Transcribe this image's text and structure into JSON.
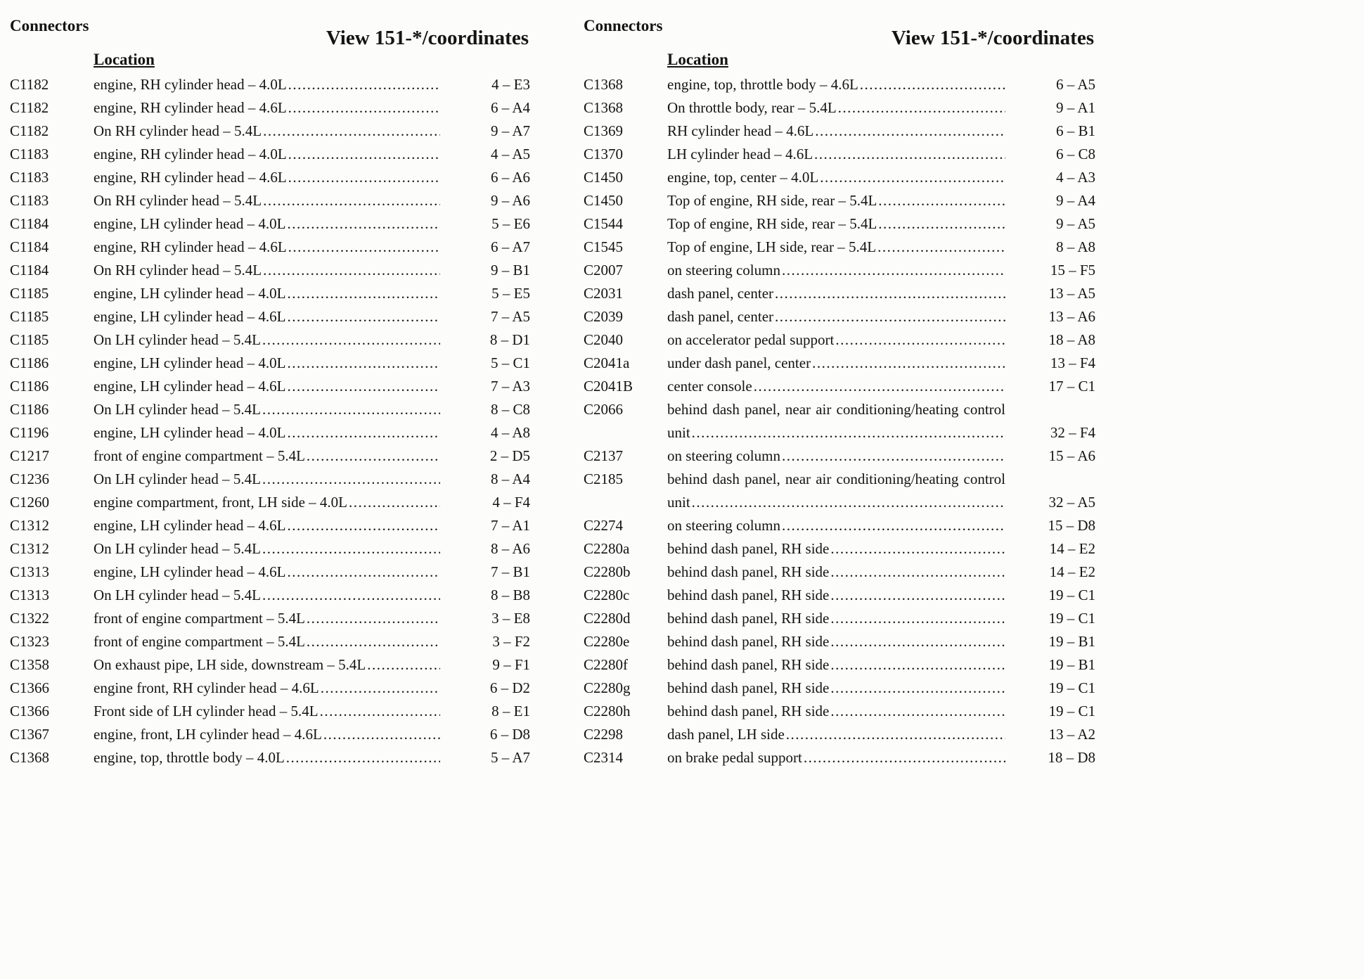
{
  "columns": [
    {
      "header": {
        "connectors": "Connectors",
        "view": "View 151-*/coordinates",
        "location": "Location"
      },
      "rows": [
        {
          "id": "C1182",
          "location": "engine, RH cylinder head – 4.0L",
          "coord": "4 – E3"
        },
        {
          "id": "C1182",
          "location": "engine, RH cylinder head – 4.6L",
          "coord": "6 – A4"
        },
        {
          "id": "C1182",
          "location": "On RH cylinder head – 5.4L",
          "coord": "9 – A7"
        },
        {
          "id": "C1183",
          "location": "engine, RH cylinder head – 4.0L",
          "coord": "4 – A5"
        },
        {
          "id": "C1183",
          "location": "engine, RH cylinder head – 4.6L",
          "coord": "6 – A6"
        },
        {
          "id": "C1183",
          "location": "On RH cylinder head – 5.4L",
          "coord": "9 – A6"
        },
        {
          "id": "C1184",
          "location": "engine, LH cylinder head – 4.0L",
          "coord": "5 – E6"
        },
        {
          "id": "C1184",
          "location": "engine, RH cylinder head – 4.6L",
          "coord": "6 – A7"
        },
        {
          "id": "C1184",
          "location": "On RH cylinder head – 5.4L",
          "coord": "9 – B1"
        },
        {
          "id": "C1185",
          "location": "engine, LH cylinder head – 4.0L",
          "coord": "5 – E5"
        },
        {
          "id": "C1185",
          "location": "engine, LH cylinder head – 4.6L",
          "coord": "7 – A5"
        },
        {
          "id": "C1185",
          "location": "On LH cylinder head – 5.4L",
          "coord": "8 – D1"
        },
        {
          "id": "C1186",
          "location": "engine, LH cylinder head – 4.0L",
          "coord": "5 – C1"
        },
        {
          "id": "C1186",
          "location": "engine, LH cylinder head – 4.6L",
          "coord": "7 – A3"
        },
        {
          "id": "C1186",
          "location": "On LH cylinder head – 5.4L",
          "coord": "8 – C8"
        },
        {
          "id": "C1196",
          "location": "engine, LH cylinder head – 4.0L",
          "coord": "4 – A8"
        },
        {
          "id": "C1217",
          "location": "front of engine compartment – 5.4L",
          "coord": "2 – D5"
        },
        {
          "id": "C1236",
          "location": "On LH cylinder head – 5.4L",
          "coord": "8 – A4"
        },
        {
          "id": "C1260",
          "location": "engine compartment, front, LH side – 4.0L",
          "coord": "4 – F4"
        },
        {
          "id": "C1312",
          "location": "engine, LH cylinder head – 4.6L",
          "coord": "7 – A1"
        },
        {
          "id": "C1312",
          "location": "On LH cylinder head – 5.4L",
          "coord": "8 – A6"
        },
        {
          "id": "C1313",
          "location": "engine, LH cylinder head – 4.6L",
          "coord": "7 – B1"
        },
        {
          "id": "C1313",
          "location": "On LH cylinder head – 5.4L",
          "coord": "8 – B8"
        },
        {
          "id": "C1322",
          "location": "front of engine compartment – 5.4L",
          "coord": "3 – E8"
        },
        {
          "id": "C1323",
          "location": "front of engine compartment – 5.4L",
          "coord": "3 – F2"
        },
        {
          "id": "C1358",
          "location": "On exhaust pipe, LH side, downstream – 5.4L",
          "coord": "9 – F1"
        },
        {
          "id": "C1366",
          "location": "engine front, RH cylinder head – 4.6L",
          "coord": "6 – D2"
        },
        {
          "id": "C1366",
          "location": "Front side of LH cylinder head – 5.4L",
          "coord": "8 – E1"
        },
        {
          "id": "C1367",
          "location": "engine, front, LH cylinder head – 4.6L",
          "coord": "6 – D8"
        },
        {
          "id": "C1368",
          "location": "engine, top, throttle body – 4.0L",
          "coord": "5 – A7"
        }
      ]
    },
    {
      "header": {
        "connectors": "Connectors",
        "view": "View 151-*/coordinates",
        "location": "Location"
      },
      "rows": [
        {
          "id": "C1368",
          "location": "engine, top, throttle body – 4.6L",
          "coord": "6 – A5"
        },
        {
          "id": "C1368",
          "location": "On throttle body, rear – 5.4L",
          "coord": "9 – A1"
        },
        {
          "id": "C1369",
          "location": "RH cylinder head – 4.6L",
          "coord": "6 – B1"
        },
        {
          "id": "C1370",
          "location": "LH cylinder head – 4.6L",
          "coord": "6 – C8"
        },
        {
          "id": "C1450",
          "location": "engine, top, center – 4.0L",
          "coord": "4 – A3"
        },
        {
          "id": "C1450",
          "location": "Top of engine, RH side, rear – 5.4L",
          "coord": "9 – A4"
        },
        {
          "id": "C1544",
          "location": "Top of engine, RH side, rear – 5.4L",
          "coord": "9 – A5"
        },
        {
          "id": "C1545",
          "location": "Top of engine, LH side, rear – 5.4L",
          "coord": "8 – A8"
        },
        {
          "id": "C2007",
          "location": "on steering column",
          "coord": "15 – F5"
        },
        {
          "id": "C2031",
          "location": "dash panel, center",
          "coord": "13 – A5"
        },
        {
          "id": "C2039",
          "location": "dash panel, center",
          "coord": "13 – A6"
        },
        {
          "id": "C2040",
          "location": "on accelerator pedal support",
          "coord": "18 – A8"
        },
        {
          "id": "C2041a",
          "location": "under dash panel, center",
          "coord": "13 – F4"
        },
        {
          "id": "C2041B",
          "location": "center console",
          "coord": "17 – C1"
        },
        {
          "id": "C2066",
          "location": "behind dash panel, near air conditioning/heating control unit",
          "coord": "32 – F4"
        },
        {
          "id": "C2137",
          "location": "on steering column",
          "coord": "15 – A6"
        },
        {
          "id": "C2185",
          "location": "behind dash panel, near air conditioning/heating control unit",
          "coord": "32 – A5"
        },
        {
          "id": "C2274",
          "location": "on steering column",
          "coord": "15 – D8"
        },
        {
          "id": "C2280a",
          "location": "behind dash panel, RH side",
          "coord": "14 – E2"
        },
        {
          "id": "C2280b",
          "location": "behind dash panel, RH side",
          "coord": "14 – E2"
        },
        {
          "id": "C2280c",
          "location": "behind dash panel, RH side",
          "coord": "19 – C1"
        },
        {
          "id": "C2280d",
          "location": "behind dash panel, RH side",
          "coord": "19 – C1"
        },
        {
          "id": "C2280e",
          "location": "behind dash panel, RH side",
          "coord": "19 – B1"
        },
        {
          "id": "C2280f",
          "location": "behind dash panel, RH side",
          "coord": "19 – B1"
        },
        {
          "id": "C2280g",
          "location": "behind dash panel, RH side",
          "coord": "19 – C1"
        },
        {
          "id": "C2280h",
          "location": "behind dash panel, RH side",
          "coord": "19 – C1"
        },
        {
          "id": "C2298",
          "location": "dash panel, LH side",
          "coord": "13 – A2"
        },
        {
          "id": "C2314",
          "location": "on brake pedal support",
          "coord": "18 – D8"
        }
      ]
    }
  ]
}
